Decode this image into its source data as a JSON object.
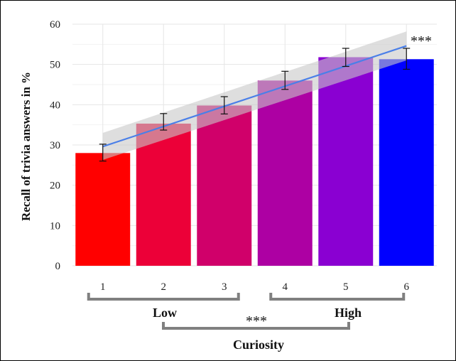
{
  "chart_data": {
    "type": "bar",
    "categories": [
      "1",
      "2",
      "3",
      "4",
      "5",
      "6"
    ],
    "values": [
      28,
      35.3,
      39.8,
      46,
      51.8,
      51.3
    ],
    "error_low": [
      26,
      33.7,
      37.7,
      43.8,
      49.5,
      48.8
    ],
    "error_high": [
      30.2,
      37.8,
      42,
      48.3,
      54,
      54
    ],
    "bar_colors": [
      "#ff0000",
      "#ec0038",
      "#d0006a",
      "#ad00a3",
      "#8a00d2",
      "#0000ff"
    ],
    "trend": {
      "start": 29.6,
      "end": 54.6,
      "ci_start": [
        26.3,
        33
      ],
      "ci_end": [
        51,
        58.2
      ],
      "line_color": "#4a7fe8",
      "band_color": "#c8c8c8"
    },
    "title": "",
    "xlabel": "Curiosity",
    "ylabel": "Recall of trivia answers in %",
    "ylim": [
      0,
      60
    ],
    "yticks": [
      0,
      10,
      20,
      30,
      40,
      50,
      60
    ],
    "grid": true,
    "annotations": {
      "trend_significance": "***",
      "group_low_label": "Low",
      "group_high_label": "High",
      "group_low_range": [
        "1",
        "3"
      ],
      "group_high_range": [
        "4",
        "6"
      ],
      "group_comparison": "***"
    }
  }
}
